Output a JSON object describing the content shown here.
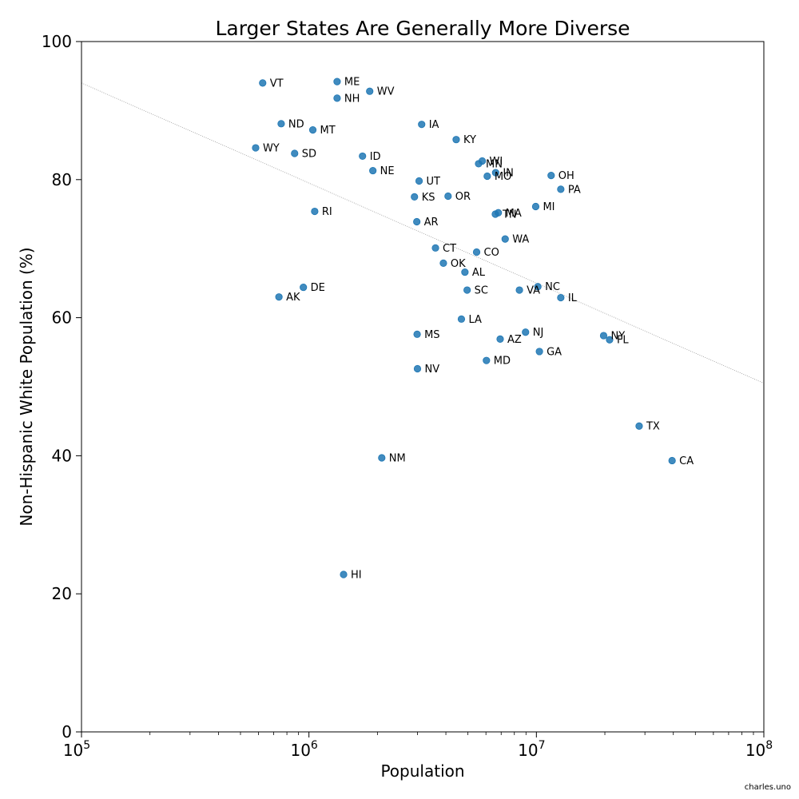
{
  "credit": "charles.uno",
  "chart_data": {
    "type": "scatter",
    "title": "Larger States Are Generally More Diverse",
    "xlabel": "Population",
    "ylabel": "Non-Hispanic White Population (%)",
    "x_scale": "log",
    "xlim": [
      100000,
      100000000
    ],
    "ylim": [
      0,
      100
    ],
    "x_ticks": [
      {
        "value": 100000,
        "base": "10",
        "exp": "5"
      },
      {
        "value": 1000000,
        "base": "10",
        "exp": "6"
      },
      {
        "value": 10000000,
        "base": "10",
        "exp": "7"
      },
      {
        "value": 100000000,
        "base": "10",
        "exp": "8"
      }
    ],
    "y_ticks": [
      0,
      20,
      40,
      60,
      80,
      100
    ],
    "point_color": "#1f77b4",
    "trend_line": {
      "start": [
        100000,
        94
      ],
      "end": [
        100000000,
        50.5
      ],
      "color": "#999999"
    },
    "points": [
      {
        "label": "VT",
        "x": 626000,
        "y": 94
      },
      {
        "label": "ME",
        "x": 1330000,
        "y": 94.2
      },
      {
        "label": "WV",
        "x": 1850000,
        "y": 92.8
      },
      {
        "label": "NH",
        "x": 1330000,
        "y": 91.8
      },
      {
        "label": "ND",
        "x": 755000,
        "y": 88.1
      },
      {
        "label": "MT",
        "x": 1040000,
        "y": 87.2
      },
      {
        "label": "IA",
        "x": 3130000,
        "y": 88
      },
      {
        "label": "KY",
        "x": 4440000,
        "y": 85.8
      },
      {
        "label": "WY",
        "x": 583000,
        "y": 84.6
      },
      {
        "label": "SD",
        "x": 865000,
        "y": 83.8
      },
      {
        "label": "ID",
        "x": 1720000,
        "y": 83.4
      },
      {
        "label": "NE",
        "x": 1910000,
        "y": 81.3
      },
      {
        "label": "WI",
        "x": 5780000,
        "y": 82.7
      },
      {
        "label": "MN",
        "x": 5570000,
        "y": 82.3
      },
      {
        "label": "IN",
        "x": 6620000,
        "y": 81
      },
      {
        "label": "MO",
        "x": 6080000,
        "y": 80.5
      },
      {
        "label": "OH",
        "x": 11610000,
        "y": 80.6
      },
      {
        "label": "UT",
        "x": 3050000,
        "y": 79.8
      },
      {
        "label": "PA",
        "x": 12800000,
        "y": 78.6
      },
      {
        "label": "KS",
        "x": 2910000,
        "y": 77.5
      },
      {
        "label": "OR",
        "x": 4090000,
        "y": 77.6
      },
      {
        "label": "MI",
        "x": 9930000,
        "y": 76.1
      },
      {
        "label": "RI",
        "x": 1060000,
        "y": 75.4
      },
      {
        "label": "MA",
        "x": 6800000,
        "y": 75.2
      },
      {
        "label": "TN",
        "x": 6600000,
        "y": 75
      },
      {
        "label": "AR",
        "x": 2980000,
        "y": 73.9
      },
      {
        "label": "WA",
        "x": 7290000,
        "y": 71.4
      },
      {
        "label": "CT",
        "x": 3600000,
        "y": 70.1
      },
      {
        "label": "CO",
        "x": 5460000,
        "y": 69.5
      },
      {
        "label": "OK",
        "x": 3900000,
        "y": 67.9
      },
      {
        "label": "AL",
        "x": 4850000,
        "y": 66.6
      },
      {
        "label": "NC",
        "x": 10150000,
        "y": 64.5
      },
      {
        "label": "DE",
        "x": 945000,
        "y": 64.4
      },
      {
        "label": "SC",
        "x": 4960000,
        "y": 64
      },
      {
        "label": "VA",
        "x": 8420000,
        "y": 64
      },
      {
        "label": "AK",
        "x": 738000,
        "y": 63
      },
      {
        "label": "IL",
        "x": 12800000,
        "y": 62.9
      },
      {
        "label": "LA",
        "x": 4680000,
        "y": 59.8
      },
      {
        "label": "NJ",
        "x": 8960000,
        "y": 57.9
      },
      {
        "label": "MS",
        "x": 2990000,
        "y": 57.6
      },
      {
        "label": "NY",
        "x": 19750000,
        "y": 57.4
      },
      {
        "label": "FL",
        "x": 20980000,
        "y": 56.8
      },
      {
        "label": "AZ",
        "x": 6930000,
        "y": 56.9
      },
      {
        "label": "GA",
        "x": 10310000,
        "y": 55.1
      },
      {
        "label": "MD",
        "x": 6030000,
        "y": 53.8
      },
      {
        "label": "NV",
        "x": 3000000,
        "y": 52.6
      },
      {
        "label": "TX",
        "x": 28300000,
        "y": 44.3
      },
      {
        "label": "NM",
        "x": 2090000,
        "y": 39.7
      },
      {
        "label": "CA",
        "x": 39500000,
        "y": 39.3
      },
      {
        "label": "HI",
        "x": 1420000,
        "y": 22.8
      }
    ]
  }
}
